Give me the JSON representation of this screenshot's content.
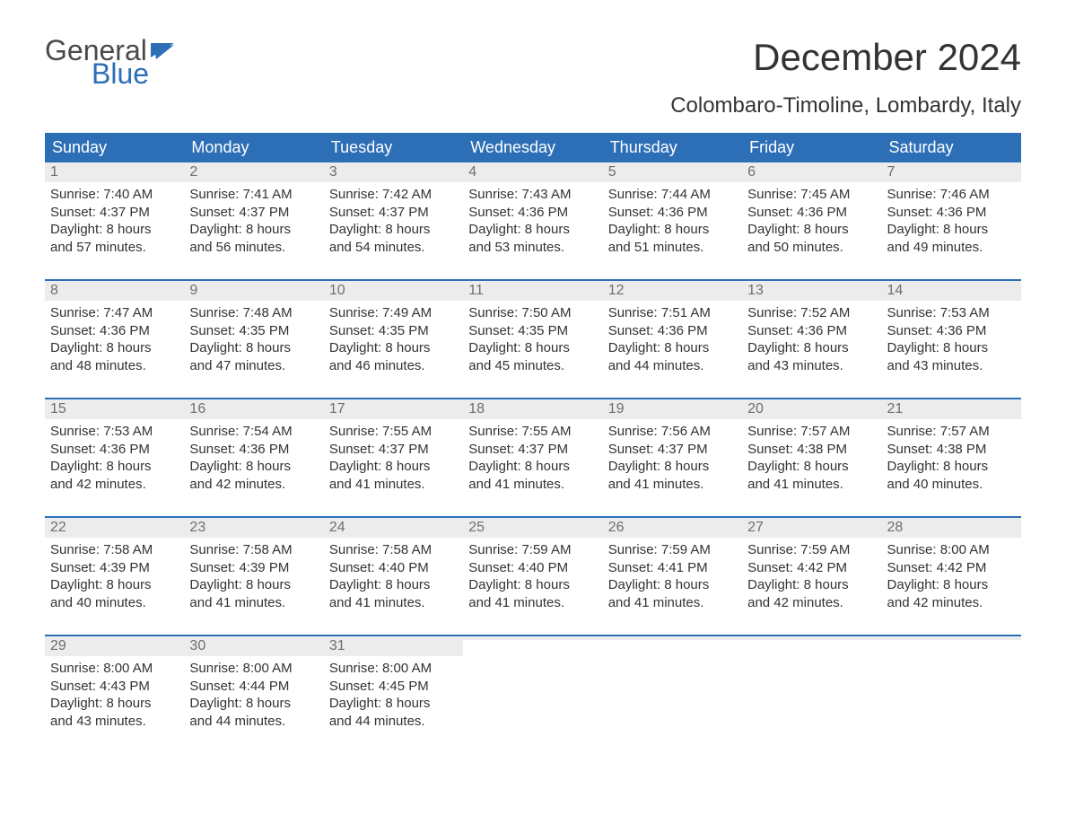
{
  "brand": {
    "word1": "General",
    "word2": "Blue",
    "flag_color": "#2d6fb6",
    "text_color_general": "#4a4a4a",
    "text_color_blue": "#2d6fb6"
  },
  "title": "December 2024",
  "subtitle": "Colombaro-Timoline, Lombardy, Italy",
  "colors": {
    "header_bg": "#2d6fb6",
    "header_text": "#ffffff",
    "daynum_bg": "#ececec",
    "daynum_text": "#6e6e6e",
    "body_text": "#333333",
    "week_divider": "#2d6fb6",
    "page_bg": "#ffffff"
  },
  "fonts": {
    "title_size_pt": 32,
    "subtitle_size_pt": 18,
    "dow_size_pt": 14,
    "daynum_size_pt": 12,
    "body_size_pt": 11
  },
  "days_of_week": [
    "Sunday",
    "Monday",
    "Tuesday",
    "Wednesday",
    "Thursday",
    "Friday",
    "Saturday"
  ],
  "weeks": [
    [
      {
        "n": "1",
        "sunrise": "Sunrise: 7:40 AM",
        "sunset": "Sunset: 4:37 PM",
        "d1": "Daylight: 8 hours",
        "d2": "and 57 minutes."
      },
      {
        "n": "2",
        "sunrise": "Sunrise: 7:41 AM",
        "sunset": "Sunset: 4:37 PM",
        "d1": "Daylight: 8 hours",
        "d2": "and 56 minutes."
      },
      {
        "n": "3",
        "sunrise": "Sunrise: 7:42 AM",
        "sunset": "Sunset: 4:37 PM",
        "d1": "Daylight: 8 hours",
        "d2": "and 54 minutes."
      },
      {
        "n": "4",
        "sunrise": "Sunrise: 7:43 AM",
        "sunset": "Sunset: 4:36 PM",
        "d1": "Daylight: 8 hours",
        "d2": "and 53 minutes."
      },
      {
        "n": "5",
        "sunrise": "Sunrise: 7:44 AM",
        "sunset": "Sunset: 4:36 PM",
        "d1": "Daylight: 8 hours",
        "d2": "and 51 minutes."
      },
      {
        "n": "6",
        "sunrise": "Sunrise: 7:45 AM",
        "sunset": "Sunset: 4:36 PM",
        "d1": "Daylight: 8 hours",
        "d2": "and 50 minutes."
      },
      {
        "n": "7",
        "sunrise": "Sunrise: 7:46 AM",
        "sunset": "Sunset: 4:36 PM",
        "d1": "Daylight: 8 hours",
        "d2": "and 49 minutes."
      }
    ],
    [
      {
        "n": "8",
        "sunrise": "Sunrise: 7:47 AM",
        "sunset": "Sunset: 4:36 PM",
        "d1": "Daylight: 8 hours",
        "d2": "and 48 minutes."
      },
      {
        "n": "9",
        "sunrise": "Sunrise: 7:48 AM",
        "sunset": "Sunset: 4:35 PM",
        "d1": "Daylight: 8 hours",
        "d2": "and 47 minutes."
      },
      {
        "n": "10",
        "sunrise": "Sunrise: 7:49 AM",
        "sunset": "Sunset: 4:35 PM",
        "d1": "Daylight: 8 hours",
        "d2": "and 46 minutes."
      },
      {
        "n": "11",
        "sunrise": "Sunrise: 7:50 AM",
        "sunset": "Sunset: 4:35 PM",
        "d1": "Daylight: 8 hours",
        "d2": "and 45 minutes."
      },
      {
        "n": "12",
        "sunrise": "Sunrise: 7:51 AM",
        "sunset": "Sunset: 4:36 PM",
        "d1": "Daylight: 8 hours",
        "d2": "and 44 minutes."
      },
      {
        "n": "13",
        "sunrise": "Sunrise: 7:52 AM",
        "sunset": "Sunset: 4:36 PM",
        "d1": "Daylight: 8 hours",
        "d2": "and 43 minutes."
      },
      {
        "n": "14",
        "sunrise": "Sunrise: 7:53 AM",
        "sunset": "Sunset: 4:36 PM",
        "d1": "Daylight: 8 hours",
        "d2": "and 43 minutes."
      }
    ],
    [
      {
        "n": "15",
        "sunrise": "Sunrise: 7:53 AM",
        "sunset": "Sunset: 4:36 PM",
        "d1": "Daylight: 8 hours",
        "d2": "and 42 minutes."
      },
      {
        "n": "16",
        "sunrise": "Sunrise: 7:54 AM",
        "sunset": "Sunset: 4:36 PM",
        "d1": "Daylight: 8 hours",
        "d2": "and 42 minutes."
      },
      {
        "n": "17",
        "sunrise": "Sunrise: 7:55 AM",
        "sunset": "Sunset: 4:37 PM",
        "d1": "Daylight: 8 hours",
        "d2": "and 41 minutes."
      },
      {
        "n": "18",
        "sunrise": "Sunrise: 7:55 AM",
        "sunset": "Sunset: 4:37 PM",
        "d1": "Daylight: 8 hours",
        "d2": "and 41 minutes."
      },
      {
        "n": "19",
        "sunrise": "Sunrise: 7:56 AM",
        "sunset": "Sunset: 4:37 PM",
        "d1": "Daylight: 8 hours",
        "d2": "and 41 minutes."
      },
      {
        "n": "20",
        "sunrise": "Sunrise: 7:57 AM",
        "sunset": "Sunset: 4:38 PM",
        "d1": "Daylight: 8 hours",
        "d2": "and 41 minutes."
      },
      {
        "n": "21",
        "sunrise": "Sunrise: 7:57 AM",
        "sunset": "Sunset: 4:38 PM",
        "d1": "Daylight: 8 hours",
        "d2": "and 40 minutes."
      }
    ],
    [
      {
        "n": "22",
        "sunrise": "Sunrise: 7:58 AM",
        "sunset": "Sunset: 4:39 PM",
        "d1": "Daylight: 8 hours",
        "d2": "and 40 minutes."
      },
      {
        "n": "23",
        "sunrise": "Sunrise: 7:58 AM",
        "sunset": "Sunset: 4:39 PM",
        "d1": "Daylight: 8 hours",
        "d2": "and 41 minutes."
      },
      {
        "n": "24",
        "sunrise": "Sunrise: 7:58 AM",
        "sunset": "Sunset: 4:40 PM",
        "d1": "Daylight: 8 hours",
        "d2": "and 41 minutes."
      },
      {
        "n": "25",
        "sunrise": "Sunrise: 7:59 AM",
        "sunset": "Sunset: 4:40 PM",
        "d1": "Daylight: 8 hours",
        "d2": "and 41 minutes."
      },
      {
        "n": "26",
        "sunrise": "Sunrise: 7:59 AM",
        "sunset": "Sunset: 4:41 PM",
        "d1": "Daylight: 8 hours",
        "d2": "and 41 minutes."
      },
      {
        "n": "27",
        "sunrise": "Sunrise: 7:59 AM",
        "sunset": "Sunset: 4:42 PM",
        "d1": "Daylight: 8 hours",
        "d2": "and 42 minutes."
      },
      {
        "n": "28",
        "sunrise": "Sunrise: 8:00 AM",
        "sunset": "Sunset: 4:42 PM",
        "d1": "Daylight: 8 hours",
        "d2": "and 42 minutes."
      }
    ],
    [
      {
        "n": "29",
        "sunrise": "Sunrise: 8:00 AM",
        "sunset": "Sunset: 4:43 PM",
        "d1": "Daylight: 8 hours",
        "d2": "and 43 minutes."
      },
      {
        "n": "30",
        "sunrise": "Sunrise: 8:00 AM",
        "sunset": "Sunset: 4:44 PM",
        "d1": "Daylight: 8 hours",
        "d2": "and 44 minutes."
      },
      {
        "n": "31",
        "sunrise": "Sunrise: 8:00 AM",
        "sunset": "Sunset: 4:45 PM",
        "d1": "Daylight: 8 hours",
        "d2": "and 44 minutes."
      },
      {
        "n": "",
        "sunrise": "",
        "sunset": "",
        "d1": "",
        "d2": ""
      },
      {
        "n": "",
        "sunrise": "",
        "sunset": "",
        "d1": "",
        "d2": ""
      },
      {
        "n": "",
        "sunrise": "",
        "sunset": "",
        "d1": "",
        "d2": ""
      },
      {
        "n": "",
        "sunrise": "",
        "sunset": "",
        "d1": "",
        "d2": ""
      }
    ]
  ]
}
